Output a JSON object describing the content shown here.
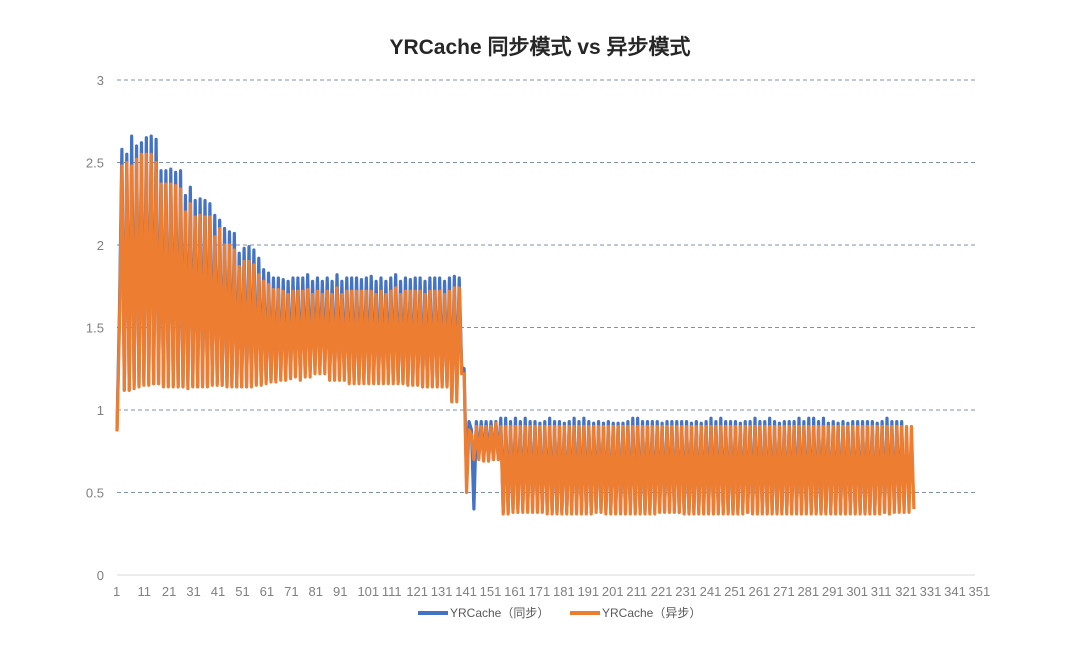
{
  "chart_data": {
    "type": "line",
    "title": "YRCache 同步模式 vs 异步模式",
    "xlabel": "",
    "ylabel": "",
    "ylim": [
      0,
      3
    ],
    "yticks": [
      "0",
      "0.5",
      "1",
      "1.5",
      "2",
      "2.5",
      "3"
    ],
    "x_count": 352,
    "xtick_labels": [
      "1",
      "11",
      "21",
      "31",
      "41",
      "51",
      "61",
      "71",
      "81",
      "91",
      "101",
      "111",
      "121",
      "131",
      "141",
      "151",
      "161",
      "171",
      "181",
      "191",
      "201",
      "211",
      "221",
      "231",
      "241",
      "251",
      "261",
      "271",
      "281",
      "291",
      "301",
      "311",
      "321",
      "331",
      "341",
      "351"
    ],
    "grid": true,
    "legend_position": "bottom",
    "colors": {
      "sync": "#4472C4",
      "async": "#ED7D31"
    },
    "series": [
      {
        "name": "YRCache（同步）",
        "values": [
          0.88,
          1.6,
          2.58,
          1.12,
          2.55,
          1.12,
          2.66,
          1.15,
          2.6,
          1.15,
          2.62,
          1.16,
          2.65,
          1.16,
          2.66,
          1.16,
          2.64,
          1.16,
          2.45,
          1.15,
          2.45,
          1.15,
          2.46,
          1.15,
          2.44,
          1.14,
          2.45,
          1.14,
          2.3,
          1.15,
          2.35,
          1.15,
          2.27,
          1.14,
          2.28,
          1.15,
          2.27,
          1.15,
          2.25,
          1.16,
          2.18,
          1.16,
          2.15,
          1.15,
          2.1,
          1.15,
          2.08,
          1.15,
          2.07,
          1.14,
          1.95,
          1.14,
          1.98,
          1.14,
          1.99,
          1.16,
          1.97,
          1.16,
          1.92,
          1.16,
          1.85,
          1.18,
          1.83,
          1.18,
          1.8,
          1.18,
          1.8,
          1.2,
          1.79,
          1.2,
          1.78,
          1.2,
          1.8,
          1.25,
          1.8,
          1.2,
          1.8,
          1.22,
          1.82,
          1.24,
          1.78,
          1.26,
          1.8,
          1.25,
          1.78,
          1.25,
          1.8,
          1.2,
          1.78,
          1.2,
          1.82,
          1.2,
          1.78,
          1.2,
          1.8,
          1.18,
          1.8,
          1.18,
          1.8,
          1.18,
          1.79,
          1.18,
          1.8,
          1.18,
          1.81,
          1.18,
          1.78,
          1.18,
          1.8,
          1.18,
          1.78,
          1.18,
          1.8,
          1.18,
          1.82,
          1.17,
          1.78,
          1.17,
          1.8,
          1.16,
          1.79,
          1.16,
          1.8,
          1.16,
          1.8,
          1.15,
          1.78,
          1.15,
          1.8,
          1.15,
          1.8,
          1.15,
          1.8,
          1.15,
          1.78,
          1.15,
          1.8,
          1.05,
          1.81,
          1.1,
          1.8,
          1.26,
          1.25,
          0.58,
          0.93,
          0.88,
          0.4,
          0.93,
          0.72,
          0.93,
          0.7,
          0.93,
          0.7,
          0.93,
          0.7,
          0.93,
          0.7,
          0.95,
          0.38,
          0.95,
          0.38,
          0.93,
          0.4,
          0.95,
          0.4,
          0.93,
          0.4,
          0.95,
          0.4,
          0.93,
          0.4,
          0.93,
          0.4,
          0.92,
          0.4,
          0.93,
          0.39,
          0.95,
          0.38,
          0.93,
          0.38,
          0.93,
          0.38,
          0.92,
          0.38,
          0.93,
          0.38,
          0.95,
          0.38,
          0.93,
          0.38,
          0.95,
          0.38,
          0.93,
          0.38,
          0.92,
          0.4,
          0.93,
          0.4,
          0.92,
          0.38,
          0.93,
          0.38,
          0.92,
          0.38,
          0.92,
          0.38,
          0.92,
          0.38,
          0.93,
          0.38,
          0.95,
          0.38,
          0.95,
          0.38,
          0.93,
          0.38,
          0.93,
          0.38,
          0.93,
          0.39,
          0.93,
          0.39,
          0.92,
          0.39,
          0.93,
          0.39,
          0.93,
          0.39,
          0.93,
          0.38,
          0.93,
          0.38,
          0.93,
          0.38,
          0.92,
          0.38,
          0.93,
          0.38,
          0.92,
          0.38,
          0.93,
          0.38,
          0.95,
          0.38,
          0.93,
          0.38,
          0.95,
          0.38,
          0.93,
          0.38,
          0.93,
          0.38,
          0.93,
          0.38,
          0.92,
          0.4,
          0.93,
          0.38,
          0.93,
          0.38,
          0.95,
          0.38,
          0.93,
          0.38,
          0.93,
          0.38,
          0.95,
          0.38,
          0.93,
          0.38,
          0.92,
          0.38,
          0.93,
          0.38,
          0.93,
          0.38,
          0.93,
          0.38,
          0.95,
          0.38,
          0.93,
          0.38,
          0.95,
          0.38,
          0.95,
          0.38,
          0.93,
          0.38,
          0.95,
          0.38,
          0.92,
          0.38,
          0.93,
          0.38,
          0.92,
          0.38,
          0.93,
          0.38,
          0.92,
          0.38,
          0.93,
          0.38,
          0.93,
          0.38,
          0.93,
          0.38,
          0.93,
          0.38,
          0.93,
          0.38,
          0.92,
          0.4,
          0.93,
          0.38,
          0.95,
          0.4,
          0.93,
          0.4,
          0.93,
          0.4,
          0.93,
          0.4
        ]
      },
      {
        "name": "YRCache（异步）",
        "values": [
          0.87,
          1.5,
          2.48,
          1.12,
          2.5,
          1.12,
          2.48,
          1.13,
          2.52,
          1.14,
          2.55,
          1.15,
          2.55,
          1.15,
          2.55,
          1.16,
          2.5,
          1.16,
          2.37,
          1.14,
          2.37,
          1.14,
          2.37,
          1.14,
          2.36,
          1.14,
          2.34,
          1.14,
          2.2,
          1.13,
          2.25,
          1.14,
          2.17,
          1.14,
          2.18,
          1.14,
          2.17,
          1.14,
          2.17,
          1.15,
          2.05,
          1.15,
          2.1,
          1.15,
          2.0,
          1.14,
          2.0,
          1.14,
          1.97,
          1.14,
          1.87,
          1.14,
          1.9,
          1.14,
          1.9,
          1.14,
          1.88,
          1.15,
          1.82,
          1.15,
          1.78,
          1.16,
          1.76,
          1.17,
          1.73,
          1.17,
          1.73,
          1.18,
          1.72,
          1.18,
          1.7,
          1.19,
          1.72,
          1.2,
          1.72,
          1.18,
          1.72,
          1.2,
          1.73,
          1.2,
          1.7,
          1.22,
          1.72,
          1.22,
          1.7,
          1.22,
          1.72,
          1.18,
          1.7,
          1.18,
          1.74,
          1.18,
          1.7,
          1.18,
          1.72,
          1.16,
          1.72,
          1.16,
          1.72,
          1.16,
          1.72,
          1.16,
          1.72,
          1.16,
          1.72,
          1.16,
          1.7,
          1.16,
          1.72,
          1.16,
          1.7,
          1.16,
          1.72,
          1.16,
          1.74,
          1.16,
          1.7,
          1.16,
          1.72,
          1.15,
          1.72,
          1.15,
          1.72,
          1.15,
          1.72,
          1.14,
          1.7,
          1.14,
          1.72,
          1.14,
          1.72,
          1.14,
          1.72,
          1.14,
          1.7,
          1.14,
          1.72,
          1.05,
          1.74,
          1.05,
          1.74,
          1.22,
          1.22,
          0.5,
          0.88,
          0.85,
          0.7,
          0.9,
          0.7,
          0.9,
          0.69,
          0.9,
          0.69,
          0.9,
          0.7,
          0.92,
          0.7,
          0.9,
          0.37,
          0.9,
          0.37,
          0.9,
          0.38,
          0.9,
          0.38,
          0.9,
          0.38,
          0.9,
          0.38,
          0.9,
          0.38,
          0.9,
          0.38,
          0.9,
          0.38,
          0.9,
          0.37,
          0.9,
          0.37,
          0.9,
          0.37,
          0.9,
          0.37,
          0.9,
          0.37,
          0.9,
          0.37,
          0.9,
          0.37,
          0.9,
          0.37,
          0.9,
          0.37,
          0.9,
          0.37,
          0.9,
          0.38,
          0.9,
          0.38,
          0.9,
          0.37,
          0.9,
          0.37,
          0.9,
          0.37,
          0.9,
          0.37,
          0.9,
          0.37,
          0.9,
          0.37,
          0.9,
          0.37,
          0.9,
          0.37,
          0.9,
          0.37,
          0.9,
          0.37,
          0.9,
          0.37,
          0.9,
          0.38,
          0.9,
          0.38,
          0.9,
          0.38,
          0.9,
          0.38,
          0.9,
          0.38,
          0.9,
          0.37,
          0.9,
          0.37,
          0.9,
          0.37,
          0.9,
          0.37,
          0.9,
          0.37,
          0.9,
          0.37,
          0.9,
          0.37,
          0.9,
          0.37,
          0.9,
          0.37,
          0.9,
          0.37,
          0.9,
          0.37,
          0.9,
          0.37,
          0.9,
          0.37,
          0.9,
          0.38,
          0.9,
          0.37,
          0.9,
          0.37,
          0.9,
          0.37,
          0.9,
          0.37,
          0.9,
          0.37,
          0.9,
          0.37,
          0.9,
          0.37,
          0.9,
          0.37,
          0.9,
          0.37,
          0.9,
          0.37,
          0.9,
          0.37,
          0.9,
          0.37,
          0.9,
          0.37,
          0.9,
          0.37,
          0.9,
          0.37,
          0.9,
          0.37,
          0.9,
          0.37,
          0.9,
          0.37,
          0.9,
          0.37,
          0.9,
          0.37,
          0.9,
          0.37,
          0.9,
          0.37,
          0.9,
          0.37,
          0.9,
          0.37,
          0.9,
          0.37,
          0.9,
          0.37,
          0.9,
          0.37,
          0.9,
          0.38,
          0.9,
          0.37,
          0.9,
          0.38,
          0.9,
          0.38,
          0.9,
          0.38,
          0.9,
          0.38,
          0.9,
          0.4
        ]
      }
    ]
  }
}
